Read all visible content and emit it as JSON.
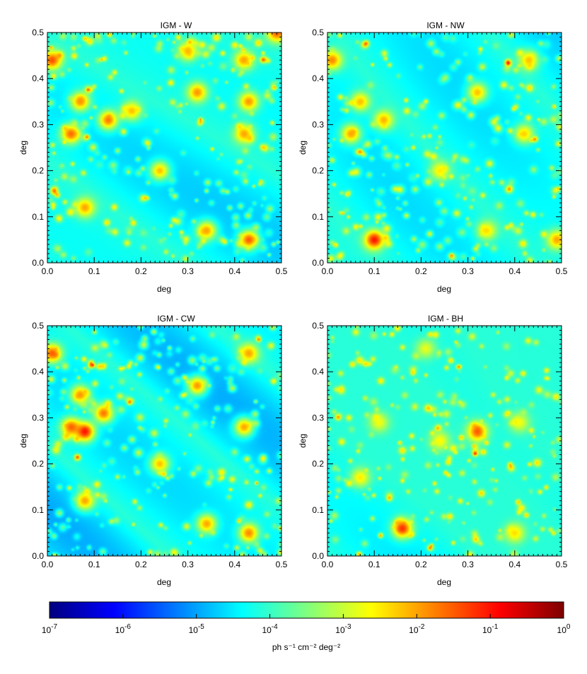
{
  "chart_data": [
    {
      "type": "heatmap",
      "title": "IGM - W",
      "xlabel": "deg",
      "ylabel": "deg",
      "xlim": [
        0.0,
        0.5
      ],
      "ylim": [
        0.0,
        0.5
      ],
      "xticks": [
        "0.0",
        "0.1",
        "0.2",
        "0.3",
        "0.4",
        "0.5"
      ],
      "yticks": [
        "0.0",
        "0.1",
        "0.2",
        "0.3",
        "0.4",
        "0.5"
      ],
      "void_fraction": 0.9,
      "sources": [
        {
          "x": 0.01,
          "y": 0.44,
          "log_flux": -1.4
        },
        {
          "x": 0.05,
          "y": 0.28,
          "log_flux": -1.6
        },
        {
          "x": 0.13,
          "y": 0.31,
          "log_flux": -1.7
        },
        {
          "x": 0.07,
          "y": 0.35,
          "log_flux": -1.9
        },
        {
          "x": 0.32,
          "y": 0.37,
          "log_flux": -1.9
        },
        {
          "x": 0.43,
          "y": 0.35,
          "log_flux": -1.9
        },
        {
          "x": 0.42,
          "y": 0.44,
          "log_flux": -2.0
        },
        {
          "x": 0.49,
          "y": 0.5,
          "log_flux": -1.5
        },
        {
          "x": 0.08,
          "y": 0.12,
          "log_flux": -2.0
        },
        {
          "x": 0.42,
          "y": 0.28,
          "log_flux": -2.0
        },
        {
          "x": 0.43,
          "y": 0.05,
          "log_flux": -1.5
        },
        {
          "x": 0.24,
          "y": 0.2,
          "log_flux": -2.2
        },
        {
          "x": 0.34,
          "y": 0.07,
          "log_flux": -2.0
        },
        {
          "x": 0.18,
          "y": 0.33,
          "log_flux": -2.2
        },
        {
          "x": 0.3,
          "y": 0.46,
          "log_flux": -2.1
        }
      ]
    },
    {
      "type": "heatmap",
      "title": "IGM - NW",
      "xlabel": "deg",
      "ylabel": "deg",
      "xlim": [
        0.0,
        0.5
      ],
      "ylim": [
        0.0,
        0.5
      ],
      "xticks": [
        "0.0",
        "0.1",
        "0.2",
        "0.3",
        "0.4",
        "0.5"
      ],
      "yticks": [
        "0.0",
        "0.1",
        "0.2",
        "0.3",
        "0.4",
        "0.5"
      ],
      "void_fraction": 0.8,
      "sources": [
        {
          "x": 0.01,
          "y": 0.44,
          "log_flux": -1.8
        },
        {
          "x": 0.05,
          "y": 0.28,
          "log_flux": -2.0
        },
        {
          "x": 0.12,
          "y": 0.31,
          "log_flux": -2.1
        },
        {
          "x": 0.07,
          "y": 0.35,
          "log_flux": -2.2
        },
        {
          "x": 0.32,
          "y": 0.37,
          "log_flux": -2.2
        },
        {
          "x": 0.43,
          "y": 0.44,
          "log_flux": -2.2
        },
        {
          "x": 0.42,
          "y": 0.28,
          "log_flux": -2.3
        },
        {
          "x": 0.1,
          "y": 0.05,
          "log_flux": -1.0
        },
        {
          "x": 0.49,
          "y": 0.05,
          "log_flux": -2.0
        },
        {
          "x": 0.24,
          "y": 0.2,
          "log_flux": -2.5
        },
        {
          "x": 0.34,
          "y": 0.07,
          "log_flux": -2.4
        }
      ]
    },
    {
      "type": "heatmap",
      "title": "IGM - CW",
      "xlabel": "deg",
      "ylabel": "deg",
      "xlim": [
        0.0,
        0.5
      ],
      "ylim": [
        0.0,
        0.5
      ],
      "xticks": [
        "0.0",
        "0.1",
        "0.2",
        "0.3",
        "0.4",
        "0.5"
      ],
      "yticks": [
        "0.0",
        "0.1",
        "0.2",
        "0.3",
        "0.4",
        "0.5"
      ],
      "void_fraction": 0.95,
      "sources": [
        {
          "x": 0.01,
          "y": 0.44,
          "log_flux": -1.5
        },
        {
          "x": 0.05,
          "y": 0.28,
          "log_flux": -1.6
        },
        {
          "x": 0.12,
          "y": 0.31,
          "log_flux": -1.7
        },
        {
          "x": 0.07,
          "y": 0.35,
          "log_flux": -1.9
        },
        {
          "x": 0.08,
          "y": 0.27,
          "log_flux": -1.0
        },
        {
          "x": 0.32,
          "y": 0.37,
          "log_flux": -1.9
        },
        {
          "x": 0.43,
          "y": 0.44,
          "log_flux": -2.0
        },
        {
          "x": 0.42,
          "y": 0.28,
          "log_flux": -2.0
        },
        {
          "x": 0.08,
          "y": 0.12,
          "log_flux": -2.0
        },
        {
          "x": 0.24,
          "y": 0.2,
          "log_flux": -2.2
        },
        {
          "x": 0.43,
          "y": 0.05,
          "log_flux": -1.8
        },
        {
          "x": 0.34,
          "y": 0.07,
          "log_flux": -2.0
        }
      ]
    },
    {
      "type": "heatmap",
      "title": "IGM - BH",
      "xlabel": "deg",
      "ylabel": "deg",
      "xlim": [
        0.0,
        0.5
      ],
      "ylim": [
        0.0,
        0.5
      ],
      "xticks": [
        "0.0",
        "0.1",
        "0.2",
        "0.3",
        "0.4",
        "0.5"
      ],
      "yticks": [
        "0.0",
        "0.1",
        "0.2",
        "0.3",
        "0.4",
        "0.5"
      ],
      "void_fraction": 0.35,
      "sources": [
        {
          "x": 0.16,
          "y": 0.06,
          "log_flux": -1.2
        },
        {
          "x": 0.4,
          "y": 0.05,
          "log_flux": -2.4
        },
        {
          "x": 0.24,
          "y": 0.25,
          "log_flux": -2.6
        },
        {
          "x": 0.07,
          "y": 0.17,
          "log_flux": -2.5
        },
        {
          "x": 0.32,
          "y": 0.27,
          "log_flux": -1.5
        },
        {
          "x": 0.11,
          "y": 0.29,
          "log_flux": -2.7
        },
        {
          "x": 0.41,
          "y": 0.29,
          "log_flux": -2.7
        },
        {
          "x": 0.21,
          "y": 0.45,
          "log_flux": -2.8
        }
      ]
    }
  ],
  "colorbar": {
    "label": "ph s⁻¹ cm⁻² deg⁻²",
    "range": [
      -7,
      0
    ],
    "tick_labels": [
      {
        "base": "10",
        "exp": "-7"
      },
      {
        "base": "10",
        "exp": "-6"
      },
      {
        "base": "10",
        "exp": "-5"
      },
      {
        "base": "10",
        "exp": "-4"
      },
      {
        "base": "10",
        "exp": "-3"
      },
      {
        "base": "10",
        "exp": "-2"
      },
      {
        "base": "10",
        "exp": "-1"
      },
      {
        "base": "10",
        "exp": "0"
      }
    ],
    "colormap": [
      "#00007f",
      "#0000ff",
      "#007fff",
      "#00ffff",
      "#7fff7f",
      "#ffff00",
      "#ff7f00",
      "#ff0000",
      "#7f0000"
    ]
  }
}
